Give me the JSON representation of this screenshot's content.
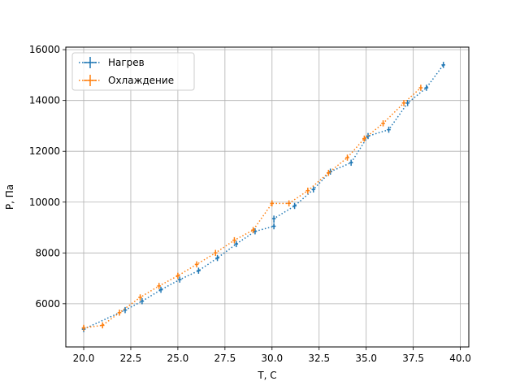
{
  "chart_data": {
    "type": "line",
    "title": "",
    "xlabel": "T, C",
    "ylabel": "P, Па",
    "xlim": [
      19.05,
      40.45
    ],
    "ylim": [
      4300,
      16100
    ],
    "x_ticks": [
      20.0,
      22.5,
      25.0,
      27.5,
      30.0,
      32.5,
      35.0,
      37.5,
      40.0
    ],
    "x_tick_labels": [
      "20.0",
      "22.5",
      "25.0",
      "27.5",
      "30.0",
      "32.5",
      "35.0",
      "37.5",
      "40.0"
    ],
    "y_ticks": [
      6000,
      8000,
      10000,
      12000,
      14000,
      16000
    ],
    "y_tick_labels": [
      "6000",
      "8000",
      "10000",
      "12000",
      "14000",
      "16000"
    ],
    "grid": true,
    "legend_position": "top-left",
    "series": [
      {
        "name": "Нагрев",
        "color": "#1f77b4",
        "line_style": "dotted",
        "x": [
          20.0,
          22.2,
          23.1,
          24.1,
          25.1,
          26.1,
          27.1,
          28.1,
          29.1,
          30.1,
          30.1,
          31.2,
          32.2,
          33.1,
          34.2,
          35.1,
          36.2,
          37.2,
          38.2,
          39.1
        ],
        "y": [
          5000,
          5750,
          6100,
          6550,
          6950,
          7300,
          7800,
          8350,
          8850,
          9050,
          9350,
          9850,
          10500,
          11200,
          11550,
          12600,
          12850,
          13900,
          14500,
          15400
        ],
        "y_err": 120,
        "x_err": 0.1
      },
      {
        "name": "Охлаждение",
        "color": "#ff7f0e",
        "line_style": "dotted",
        "x": [
          20.0,
          21.0,
          21.9,
          23.0,
          24.0,
          25.0,
          26.0,
          27.0,
          28.0,
          29.0,
          30.0,
          30.9,
          31.9,
          33.0,
          34.0,
          34.9,
          35.9,
          37.0,
          37.9
        ],
        "y": [
          5050,
          5150,
          5650,
          6250,
          6700,
          7100,
          7550,
          8000,
          8500,
          8900,
          9950,
          9950,
          10450,
          11150,
          11750,
          12500,
          13100,
          13900,
          14500
        ],
        "y_err": 120,
        "x_err": 0.1
      }
    ]
  }
}
